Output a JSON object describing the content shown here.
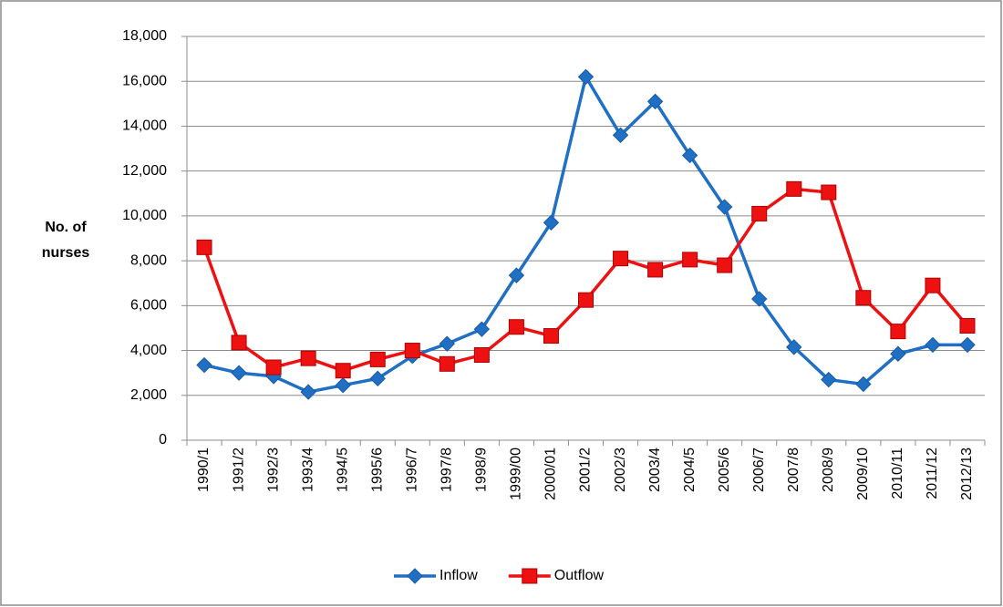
{
  "chart_data": {
    "type": "line",
    "ylabel": [
      "No. of",
      "nurses"
    ],
    "categories": [
      "1990/1",
      "1991/2",
      "1992/3",
      "1993/4",
      "1994/5",
      "1995/6",
      "1996/7",
      "1997/8",
      "1998/9",
      "1999/00",
      "2000/01",
      "2001/2",
      "2002/3",
      "2003/4",
      "2004/5",
      "2005/6",
      "2006/7",
      "2007/8",
      "2008/9",
      "2009/10",
      "2010/11",
      "2011/12",
      "2012/13"
    ],
    "series": [
      {
        "name": "Inflow",
        "color": "#1f6fc5",
        "marker": "diamond",
        "values": [
          3350,
          3000,
          2850,
          2150,
          2450,
          2750,
          3750,
          4300,
          4950,
          7350,
          9700,
          16200,
          13600,
          15100,
          12700,
          10400,
          6300,
          4150,
          2700,
          2500,
          3850,
          4250,
          4250
        ]
      },
      {
        "name": "Outflow",
        "color": "#ee1111",
        "marker": "square",
        "values": [
          8600,
          4350,
          3250,
          3650,
          3100,
          3600,
          4000,
          3400,
          3800,
          5050,
          4650,
          6250,
          8100,
          7600,
          8050,
          7800,
          10100,
          11200,
          11050,
          6350,
          4850,
          6900,
          5100
        ]
      }
    ],
    "ylim": [
      0,
      18000
    ],
    "yticks": [
      0,
      {
        "value": 2000,
        "label": "2,000"
      },
      {
        "value": 4000,
        "label": "4,000"
      },
      {
        "value": 6000,
        "label": "6,000"
      },
      {
        "value": 8000,
        "label": "8,000"
      },
      {
        "value": 10000,
        "label": "10,000"
      },
      {
        "value": 12000,
        "label": "12,000"
      },
      {
        "value": 14000,
        "label": "14,000"
      },
      {
        "value": 16000,
        "label": "16,000"
      },
      {
        "value": 18000,
        "label": "18,000"
      }
    ],
    "grid": true,
    "legend": "bottom"
  }
}
